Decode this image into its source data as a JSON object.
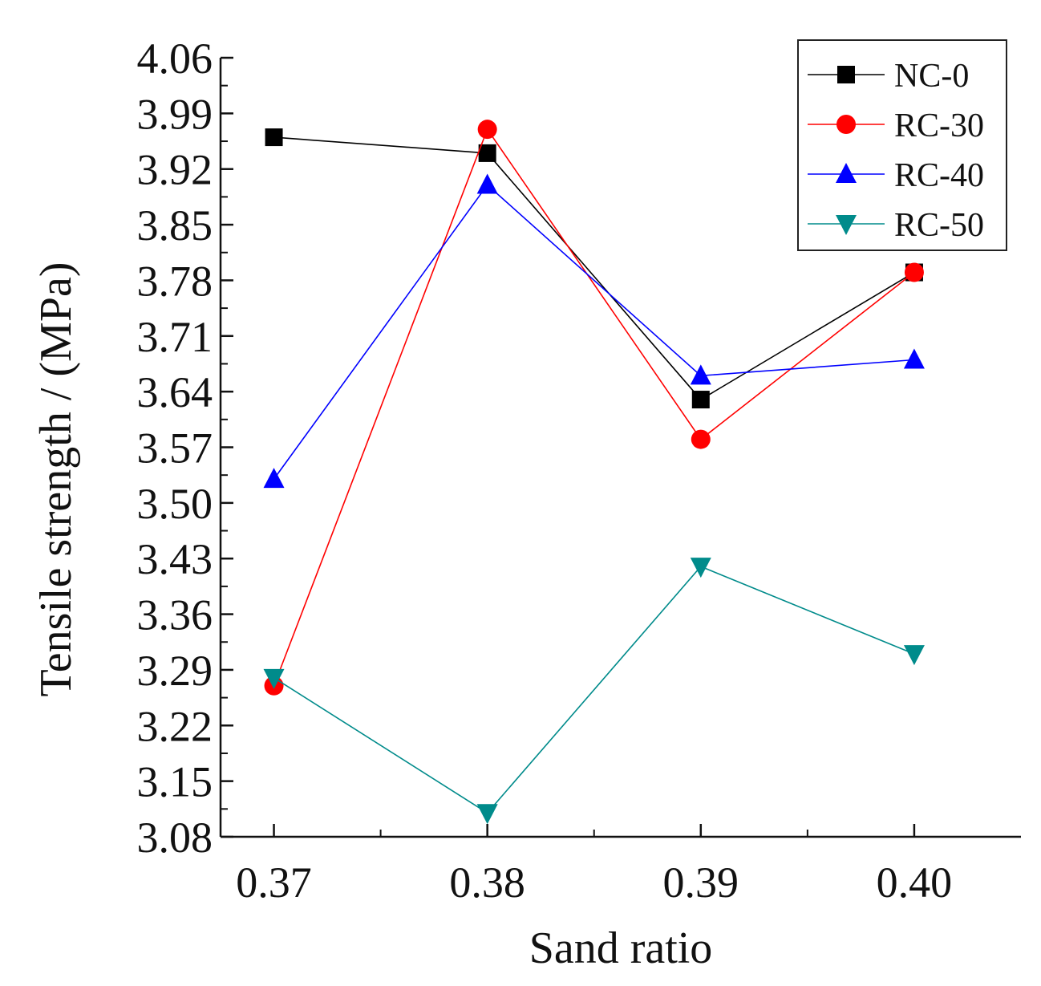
{
  "chart_data": {
    "type": "line",
    "title": "",
    "xlabel": "Sand ratio",
    "ylabel": "Tensile strength / (MPa)",
    "categories": [
      "0.37",
      "0.38",
      "0.39",
      "0.40"
    ],
    "x": [
      0.37,
      0.38,
      0.39,
      0.4
    ],
    "xlim": [
      0.3675,
      0.405
    ],
    "ylim": [
      3.08,
      4.06
    ],
    "yticks": [
      "4.06",
      "3.99",
      "3.92",
      "3.85",
      "3.78",
      "3.71",
      "3.64",
      "3.57",
      "3.50",
      "3.43",
      "3.36",
      "3.29",
      "3.22",
      "3.15",
      "3.08"
    ],
    "legend_position": "top-right",
    "series": [
      {
        "name": "NC-0",
        "color": "#000000",
        "marker": "square",
        "values": [
          3.96,
          3.94,
          3.63,
          3.79
        ]
      },
      {
        "name": "RC-30",
        "color": "#ff0000",
        "marker": "circle",
        "values": [
          3.27,
          3.97,
          3.58,
          3.79
        ]
      },
      {
        "name": "RC-40",
        "color": "#0000ff",
        "marker": "triangle-up",
        "values": [
          3.53,
          3.9,
          3.66,
          3.68
        ]
      },
      {
        "name": "RC-50",
        "color": "#008b8b",
        "marker": "triangle-down",
        "values": [
          3.28,
          3.11,
          3.42,
          3.31
        ]
      }
    ]
  }
}
